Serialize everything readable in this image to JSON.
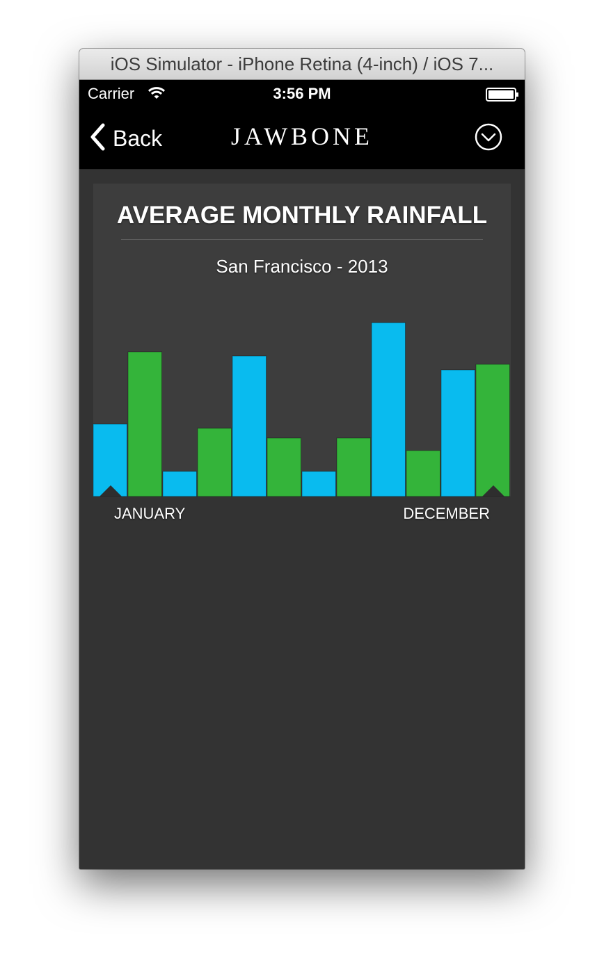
{
  "window": {
    "title": "iOS Simulator - iPhone Retina (4-inch) / iOS 7..."
  },
  "status_bar": {
    "carrier": "Carrier",
    "time": "3:56 PM",
    "icons": [
      "wifi-icon",
      "battery-icon"
    ]
  },
  "nav": {
    "back_label": "Back",
    "title": "JAWBONE",
    "menu_icon": "chevron-down-circle-icon"
  },
  "colors": {
    "blue": "#09bbef",
    "green": "#34b43a",
    "card_bg": "#3d3d3d",
    "page_bg": "#333333"
  },
  "chart_data": {
    "type": "bar",
    "title": "AVERAGE MONTHLY RAINFALL",
    "subtitle": "San Francisco - 2013",
    "categories": [
      "JANUARY",
      "",
      "",
      "",
      "",
      "",
      "",
      "",
      "",
      "",
      "",
      "DECEMBER"
    ],
    "values": [
      104,
      208,
      36,
      98,
      202,
      84,
      36,
      84,
      250,
      66,
      182,
      190
    ],
    "colors": [
      "#09bbef",
      "#34b43a",
      "#09bbef",
      "#34b43a",
      "#09bbef",
      "#34b43a",
      "#09bbef",
      "#34b43a",
      "#09bbef",
      "#34b43a",
      "#09bbef",
      "#34b43a"
    ],
    "ylim": [
      0,
      270
    ],
    "markers_on": [
      0,
      11
    ],
    "xlabel_left": "JANUARY",
    "xlabel_right": "DECEMBER",
    "grid": false,
    "xlabel": "",
    "ylabel": ""
  }
}
